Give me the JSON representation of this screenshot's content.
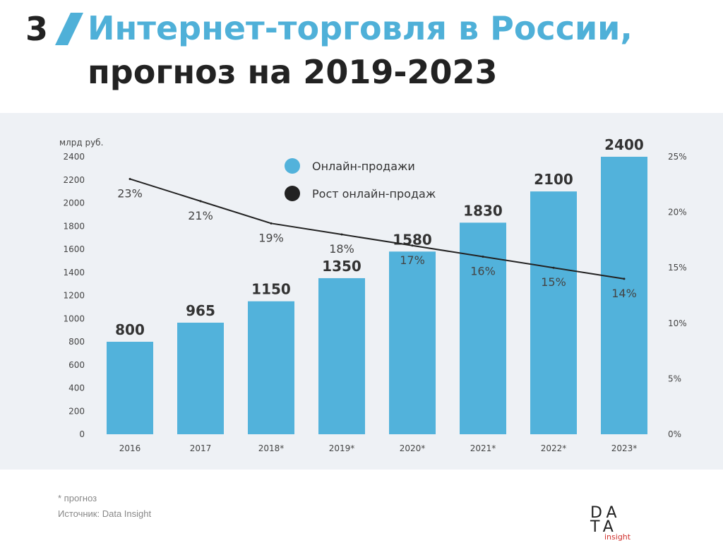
{
  "header": {
    "number": "3",
    "title_line1": "Интернет-торговля в России,",
    "title_line2": "прогноз на 2019-2023",
    "accent_color": "#4fb0d8"
  },
  "chart_data": {
    "type": "bar",
    "unit_label": "млрд руб.",
    "categories": [
      "2016",
      "2017",
      "2018*",
      "2019*",
      "2020*",
      "2021*",
      "2022*",
      "2023*"
    ],
    "series": [
      {
        "name": "Онлайн-продажи",
        "type": "bar",
        "axis": "left",
        "color": "#52b2db",
        "values": [
          800,
          965,
          1150,
          1350,
          1580,
          1830,
          2100,
          2400
        ],
        "labels": [
          "800",
          "965",
          "1150",
          "1350",
          "1580",
          "1830",
          "2100",
          "2400"
        ]
      },
      {
        "name": "Рост онлайн-продаж",
        "type": "line",
        "axis": "right",
        "color": "#222222",
        "values": [
          23,
          21,
          19,
          18,
          17,
          16,
          15,
          14
        ],
        "labels": [
          "23%",
          "21%",
          "19%",
          "18%",
          "17%",
          "16%",
          "15%",
          "14%"
        ]
      }
    ],
    "left_axis": {
      "ylim": [
        0,
        2400
      ],
      "ticks": [
        "0",
        "200",
        "400",
        "600",
        "800",
        "1000",
        "1200",
        "1400",
        "1600",
        "1800",
        "2000",
        "2200",
        "2400"
      ]
    },
    "right_axis": {
      "ylim": [
        0,
        25
      ],
      "ticks": [
        "0%",
        "5%",
        "10%",
        "15%",
        "20%",
        "25%"
      ]
    },
    "legend": {
      "placement": "top-center"
    },
    "grid": false
  },
  "footer": {
    "note": "* прогноз",
    "source": "Источник: Data Insight"
  },
  "logo": {
    "line1": "DA",
    "line2": "TA",
    "sub": "insight"
  }
}
